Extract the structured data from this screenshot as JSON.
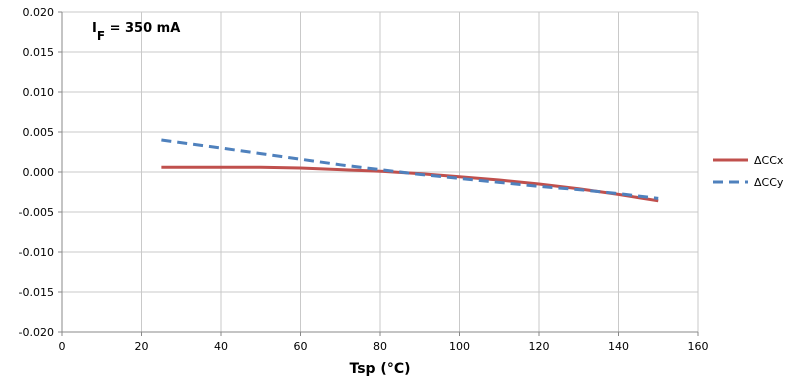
{
  "chart_data": {
    "type": "line",
    "xlabel": "Tsp (°C)",
    "ylabel": "",
    "xlim": [
      0,
      160
    ],
    "ylim": [
      -0.02,
      0.02
    ],
    "x_ticks": [
      "0",
      "20",
      "40",
      "60",
      "80",
      "100",
      "120",
      "140",
      "160"
    ],
    "y_ticks": [
      "0.020",
      "0.015",
      "0.010",
      "0.005",
      "0.000",
      "-0.005",
      "-0.010",
      "-0.015",
      "-0.020"
    ],
    "grid": true,
    "legend_position": "right",
    "annotation": {
      "main": "I",
      "subscript": "F",
      "rest": " = 350 mA"
    },
    "series": [
      {
        "name": "ΔCCx",
        "color": "#c0504d",
        "style": "solid",
        "x": [
          25,
          40,
          50,
          60,
          70,
          80,
          90,
          100,
          110,
          120,
          130,
          140,
          150
        ],
        "y": [
          0.0006,
          0.0006,
          0.0006,
          0.0005,
          0.0003,
          0.0001,
          -0.0002,
          -0.0006,
          -0.001,
          -0.0015,
          -0.0021,
          -0.0028,
          -0.0036
        ]
      },
      {
        "name": "ΔCCy",
        "color": "#4f81bd",
        "style": "dashed",
        "x": [
          25,
          40,
          50,
          60,
          70,
          80,
          90,
          100,
          110,
          120,
          130,
          140,
          150
        ],
        "y": [
          0.004,
          0.003,
          0.0023,
          0.0016,
          0.0009,
          0.0003,
          -0.0003,
          -0.0008,
          -0.0013,
          -0.0018,
          -0.0022,
          -0.0027,
          -0.0033
        ]
      }
    ]
  }
}
